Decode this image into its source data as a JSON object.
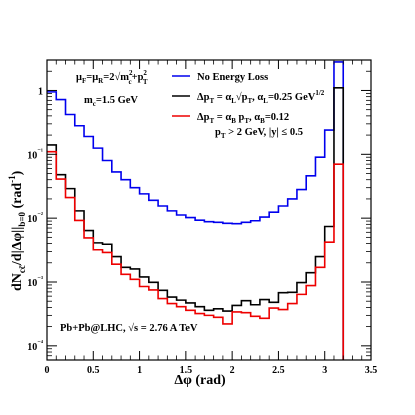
{
  "chart_data": {
    "type": "line",
    "xlabel": "Δφ (rad)",
    "ylabel": "dN_cc̄/d|Δφ||_b=0 (rad⁻¹)",
    "xlim": [
      0,
      3.5
    ],
    "ylim": [
      6e-05,
      3
    ],
    "log_y": true,
    "x_ticks": [
      0,
      0.5,
      1,
      1.5,
      2,
      2.5,
      3,
      3.5
    ],
    "x_tick_labels": [
      "0",
      "0.5",
      "1",
      "1.5",
      "2",
      "2.5",
      "3",
      "3.5"
    ],
    "y_ticks": [
      0.0001,
      0.001,
      0.01,
      0.1,
      1
    ],
    "y_tick_labels": [
      "10⁻⁴",
      "10⁻³",
      "10⁻²",
      "10⁻¹",
      "1"
    ],
    "bin_edges": [
      0,
      0.1,
      0.2,
      0.3,
      0.4,
      0.5,
      0.6,
      0.7,
      0.8,
      0.9,
      1.0,
      1.1,
      1.2,
      1.3,
      1.4,
      1.5,
      1.6,
      1.7,
      1.8,
      1.9,
      2.0,
      2.1,
      2.2,
      2.3,
      2.4,
      2.5,
      2.6,
      2.7,
      2.8,
      2.9,
      3.0,
      3.1,
      3.2
    ],
    "series": [
      {
        "name": "No Energy Loss",
        "color": "#0000ee",
        "values": [
          0.95,
          0.72,
          0.42,
          0.28,
          0.19,
          0.125,
          0.08,
          0.053,
          0.04,
          0.03,
          0.024,
          0.019,
          0.0155,
          0.013,
          0.0112,
          0.0102,
          0.0093,
          0.0088,
          0.0086,
          0.0083,
          0.0082,
          0.0086,
          0.0091,
          0.0104,
          0.0124,
          0.0155,
          0.02,
          0.028,
          0.046,
          0.09,
          0.24,
          2.8
        ]
      },
      {
        "name": "Δp_T = α_L√p_T, α_L=0.25 GeV^1/2",
        "color": "#000000",
        "values": [
          0.14,
          0.048,
          0.029,
          0.013,
          0.0064,
          0.0041,
          0.0039,
          0.0025,
          0.0017,
          0.0016,
          0.0012,
          0.00099,
          0.00074,
          0.00058,
          0.00052,
          0.00047,
          0.00041,
          0.00036,
          0.00038,
          0.00035,
          0.00043,
          0.00051,
          0.00044,
          0.00053,
          0.00048,
          0.00068,
          0.00069,
          0.00098,
          0.0014,
          0.0025,
          0.0074,
          1.1
        ]
      },
      {
        "name": "Δp_T = α_B p_T, α_B=0.12",
        "color": "#ee0000",
        "values": [
          0.11,
          0.041,
          0.021,
          0.0092,
          0.0049,
          0.0032,
          0.0029,
          0.0019,
          0.00132,
          0.0011,
          0.00085,
          0.00075,
          0.00055,
          0.00046,
          0.00041,
          0.00036,
          0.00032,
          0.0003,
          0.00028,
          0.00022,
          0.00034,
          0.00033,
          0.00029,
          0.00027,
          0.00039,
          0.00037,
          0.00046,
          0.00064,
          0.00088,
          0.0017,
          0.0042,
          0.07
        ]
      }
    ],
    "legend_position": "top-right",
    "legend": [
      "No Energy Loss",
      "Δp_T = α_L√p_T, α_L=0.25 GeV^1/2",
      "Δp_T = α_B p_T, α_B=0.12"
    ],
    "annotations": {
      "scale_line1": "μ_F=μ_R=2√(m_c²+p_T²)",
      "scale_line2": "m_c=1.5 GeV",
      "cuts": "p_T > 2 GeV, |y| ≤ 0.5",
      "system": "Pb+Pb@LHC, √s = 2.76 A TeV"
    }
  }
}
